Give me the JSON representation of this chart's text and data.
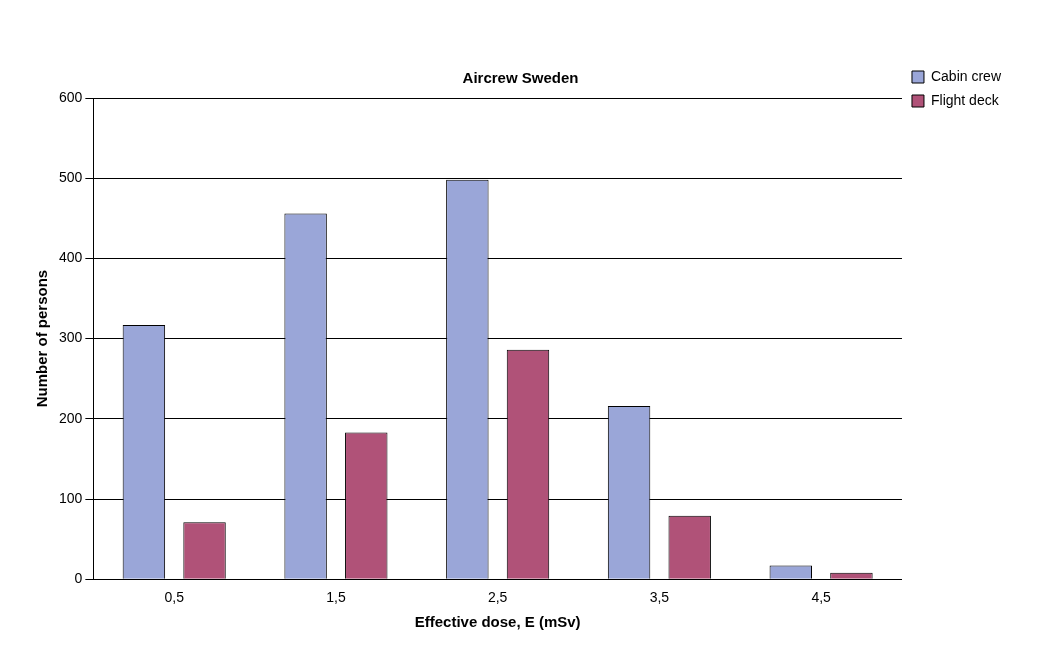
{
  "chart_data": {
    "type": "bar",
    "title": "Aircrew Sweden",
    "xlabel": "Effective dose, E (mSv)",
    "ylabel": "Number of persons",
    "categories": [
      "0,5",
      "1,5",
      "2,5",
      "3,5",
      "4,5"
    ],
    "series": [
      {
        "name": "Cabin crew",
        "color": "#9aa6d8",
        "values": [
          317,
          456,
          498,
          216,
          17
        ]
      },
      {
        "name": "Flight deck",
        "color": "#b05278",
        "values": [
          71,
          183,
          286,
          79,
          8
        ]
      }
    ],
    "ylim": [
      0,
      600
    ],
    "yticks": [
      0,
      100,
      200,
      300,
      400,
      500,
      600
    ],
    "grid": "y",
    "legend": "top right"
  }
}
